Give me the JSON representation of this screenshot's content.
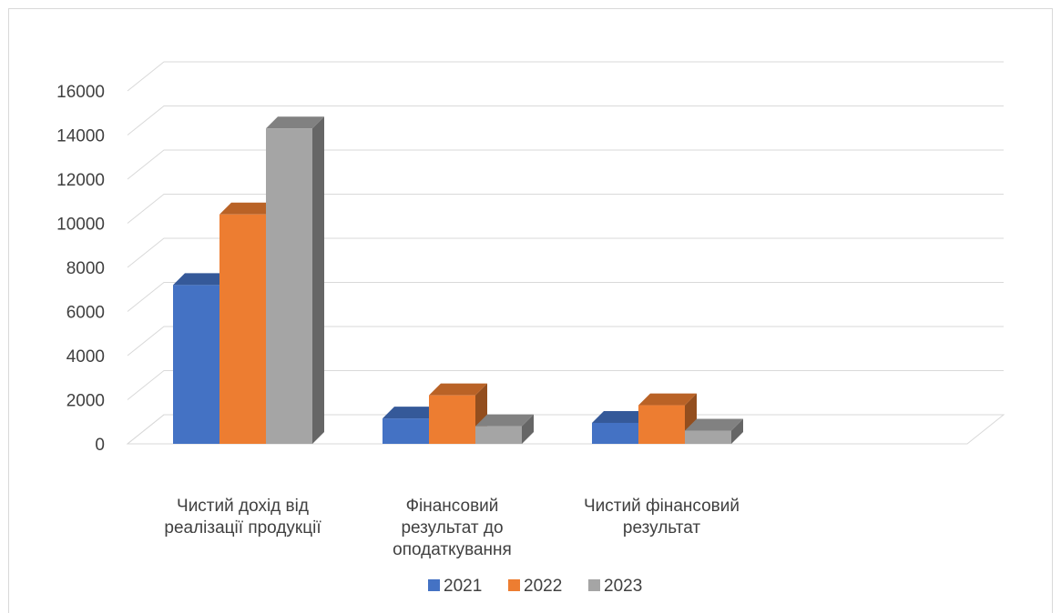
{
  "chart_data": {
    "type": "bar",
    "style": "3d-clustered-column",
    "categories": [
      [
        "Чистий дохід від",
        "реалізації продукції"
      ],
      [
        "Фінансовий",
        "результат до",
        "оподаткування"
      ],
      [
        "Чистий фінансовий",
        "результат"
      ]
    ],
    "series": [
      {
        "name": "2021",
        "color": "#4472C4",
        "values": [
          7200,
          1150,
          950
        ]
      },
      {
        "name": "2022",
        "color": "#ED7D31",
        "values": [
          10400,
          2200,
          1750
        ]
      },
      {
        "name": "2023",
        "color": "#A5A5A5",
        "values": [
          14300,
          800,
          600
        ]
      }
    ],
    "ylim": [
      0,
      16000
    ],
    "yticks": [
      0,
      2000,
      4000,
      6000,
      8000,
      10000,
      12000,
      14000,
      16000
    ],
    "grid": true,
    "legend": "bottom"
  }
}
